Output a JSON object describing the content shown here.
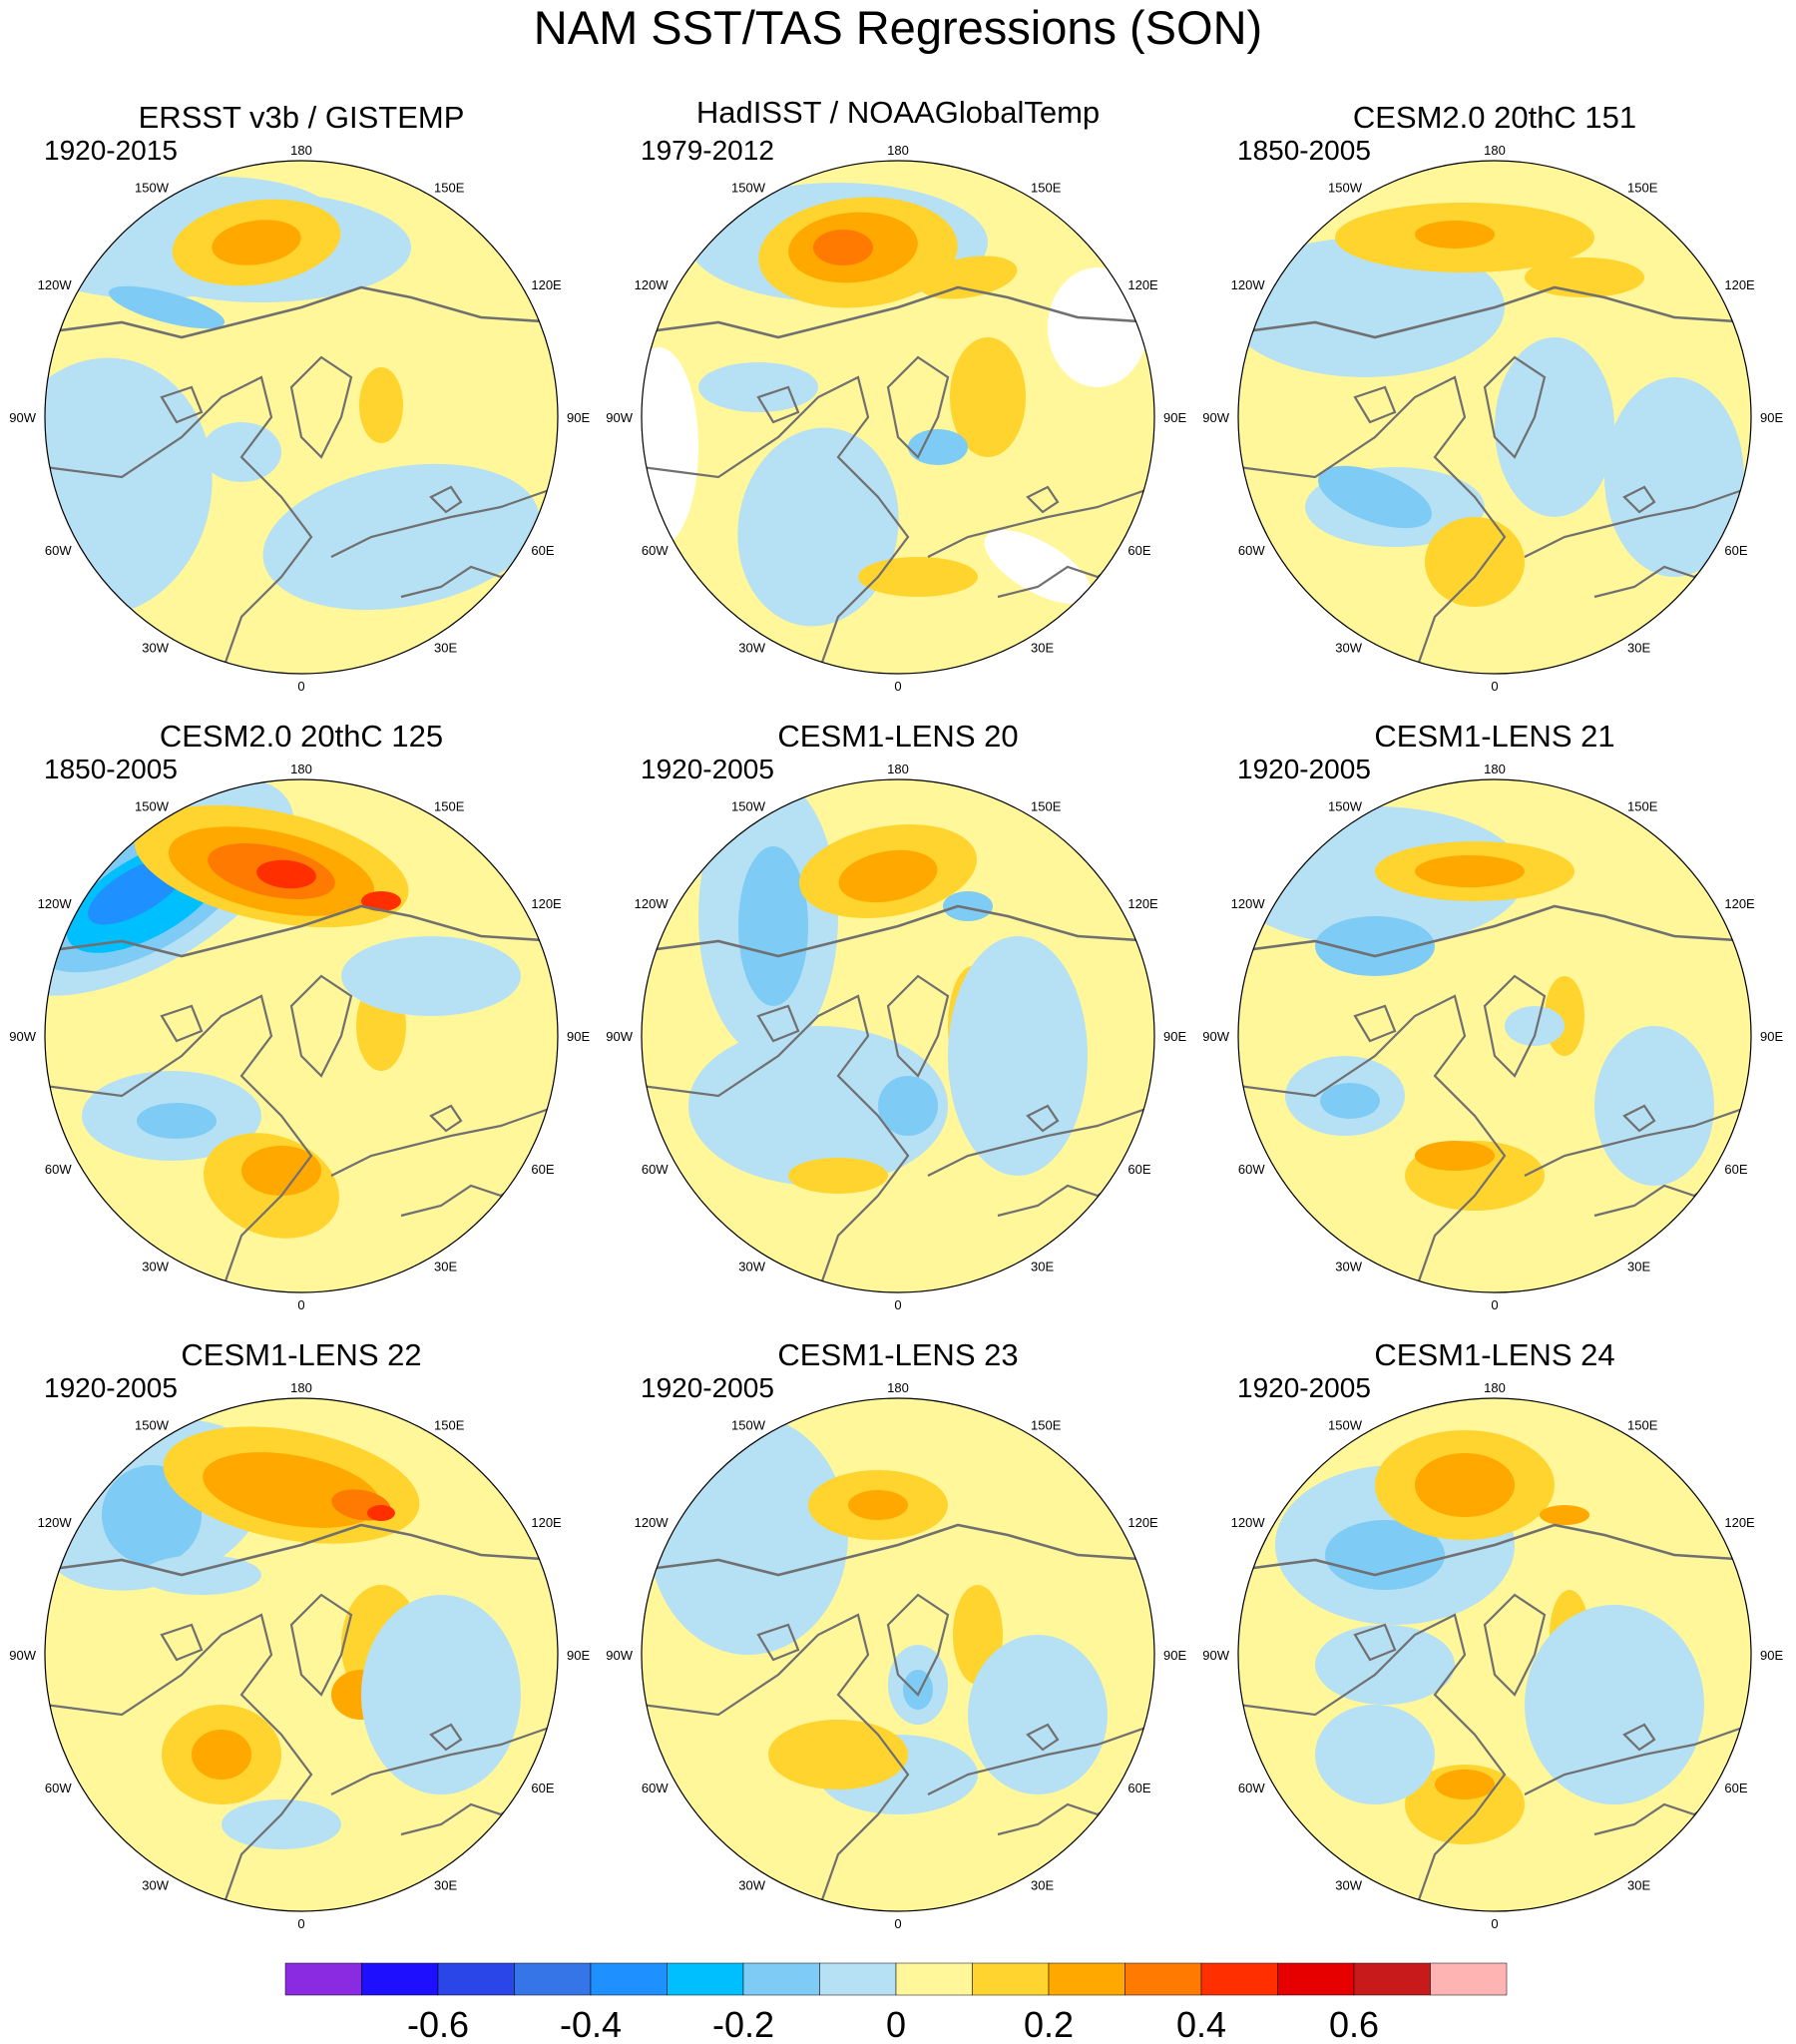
{
  "figure": {
    "title": "NAM SST/TAS Regressions (SON)"
  },
  "panels": [
    {
      "title": "ERSST v3b / GISTEMP",
      "period": "1920-2015"
    },
    {
      "title": "HadISST / NOAAGlobalTemp",
      "period": "1979-2012"
    },
    {
      "title": "CESM2.0 20thC 151",
      "period": "1850-2005"
    },
    {
      "title": "CESM2.0 20thC 125",
      "period": "1850-2005"
    },
    {
      "title": "CESM1-LENS 20",
      "period": "1920-2005"
    },
    {
      "title": "CESM1-LENS 21",
      "period": "1920-2005"
    },
    {
      "title": "CESM1-LENS 22",
      "period": "1920-2005"
    },
    {
      "title": "CESM1-LENS 23",
      "period": "1920-2005"
    },
    {
      "title": "CESM1-LENS 24",
      "period": "1920-2005"
    }
  ],
  "longitude_labels": [
    "180",
    "150E",
    "120E",
    "90E",
    "60E",
    "30E",
    "0",
    "30W",
    "60W",
    "90W",
    "120W",
    "150W"
  ],
  "colorbar": {
    "colors": [
      "#8a2be2",
      "#1e10ff",
      "#2a45e8",
      "#3575e8",
      "#1e90ff",
      "#00bfff",
      "#7ecbf5",
      "#b6e0f4",
      "#fff79a",
      "#ffd42e",
      "#ffa800",
      "#ff7a00",
      "#ff2f00",
      "#e60000",
      "#c81a1a",
      "#ffb4b4"
    ],
    "tick_labels": [
      "-0.6",
      "-0.4",
      "-0.2",
      "0",
      "0.2",
      "0.4",
      "0.6"
    ]
  },
  "colors": {
    "land_outline": "#707070",
    "background": "#ffffff"
  }
}
